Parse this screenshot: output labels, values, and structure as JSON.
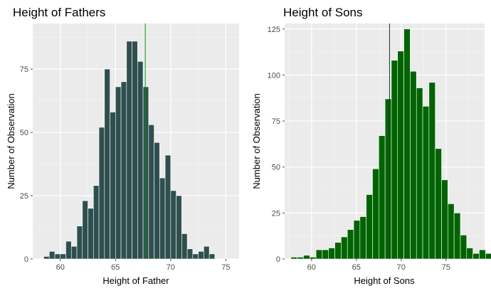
{
  "chart_data": [
    {
      "type": "histogram",
      "title": "Height of Fathers",
      "xlabel": "Height of Father",
      "ylabel": "Number of Observation",
      "xlim": [
        57.5,
        76.2
      ],
      "ylim": [
        0,
        93
      ],
      "xticks": [
        60,
        65,
        70,
        75
      ],
      "yticks": [
        0,
        25,
        50,
        75
      ],
      "bin_width": 0.5,
      "x_start": 58.5,
      "counts": [
        1,
        3,
        2,
        2,
        7,
        5,
        13,
        23,
        20,
        29,
        52,
        75,
        58,
        68,
        70,
        86,
        86,
        78,
        68,
        53,
        46,
        32,
        41,
        27,
        25,
        10,
        4,
        2,
        3,
        5,
        2
      ],
      "fill_color": "#2f4f4f",
      "mean_line": 67.7,
      "line_color": "#00a000",
      "grid": true
    },
    {
      "type": "histogram",
      "title": "Height of Sons",
      "xlabel": "Height of Sons",
      "ylabel": "Number of Observation",
      "xlim": [
        57.0,
        79.3
      ],
      "ylim": [
        0,
        128
      ],
      "xticks": [
        60,
        65,
        70,
        75
      ],
      "yticks": [
        0,
        25,
        50,
        75,
        100,
        125
      ],
      "bin_width": 0.7,
      "x_start": 57.7,
      "counts": [
        1,
        1,
        2,
        1,
        5,
        5,
        6,
        9,
        12,
        16,
        21,
        23,
        35,
        49,
        67,
        87,
        108,
        113,
        125,
        102,
        93,
        83,
        96,
        60,
        43,
        30,
        25,
        13,
        6,
        3,
        5,
        3,
        2
      ],
      "fill_color": "#006400",
      "mean_line": 68.7,
      "line_color": "#1a3a1a",
      "grid": true
    }
  ]
}
